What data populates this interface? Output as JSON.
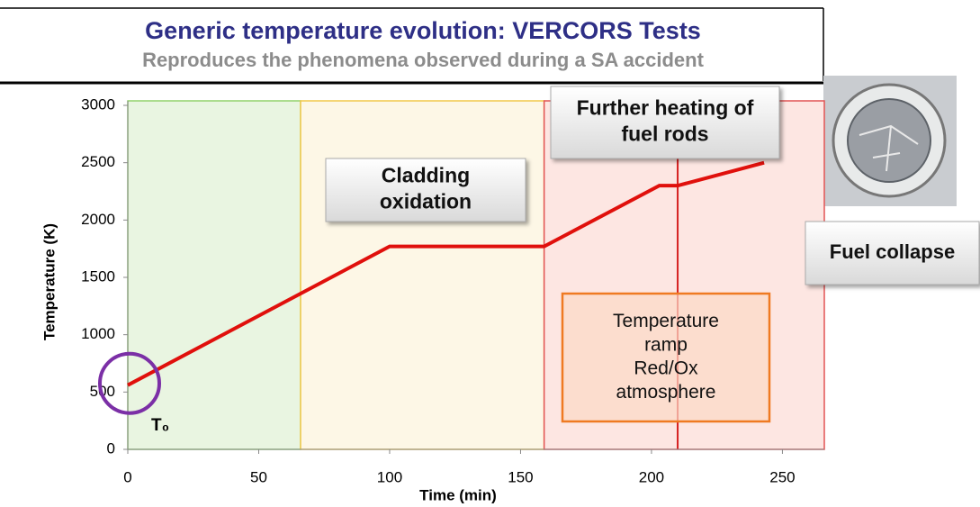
{
  "chart_data": {
    "type": "line",
    "title": "Generic temperature evolution: VERCORS Tests",
    "subtitle": "Reproduces the phenomena observed during a SA accident",
    "x_label": "Time (min)",
    "y_label": "Temperature (K)",
    "x": [
      0,
      100,
      159,
      203,
      210,
      243
    ],
    "series": [
      {
        "name": "Temperature",
        "color": "#e0100c",
        "values": [
          560,
          1770,
          1770,
          2300,
          2300,
          2500
        ]
      }
    ],
    "xlim": [
      0,
      266
    ],
    "ylim": [
      0,
      3000
    ],
    "xticks": [
      0,
      50,
      100,
      150,
      200,
      250
    ],
    "yticks": [
      0,
      500,
      1000,
      1500,
      2000,
      2500,
      3000
    ],
    "grid": false,
    "regions": [
      {
        "start": 0,
        "end": 66,
        "color": "#e9f5e1",
        "edge": "#92d26c"
      },
      {
        "start": 66,
        "end": 159,
        "color": "#fdf7e6",
        "edge": "#f2c84a"
      },
      {
        "start": 159,
        "end": 266,
        "color": "#fde6e2",
        "edge": "#e25454"
      }
    ],
    "vlines": [
      {
        "x": 210,
        "color": "#d61f1f"
      }
    ],
    "annotations": [
      {
        "lines": [
          "Cladding",
          "oxidation"
        ]
      },
      {
        "lines": [
          "Further heating of",
          "fuel rods"
        ]
      },
      {
        "lines": [
          "Fuel collapse"
        ]
      },
      {
        "lines": [
          "Temperature",
          "ramp",
          "Red/Ox",
          "atmosphere"
        ]
      }
    ],
    "marker_label": "T₀"
  }
}
